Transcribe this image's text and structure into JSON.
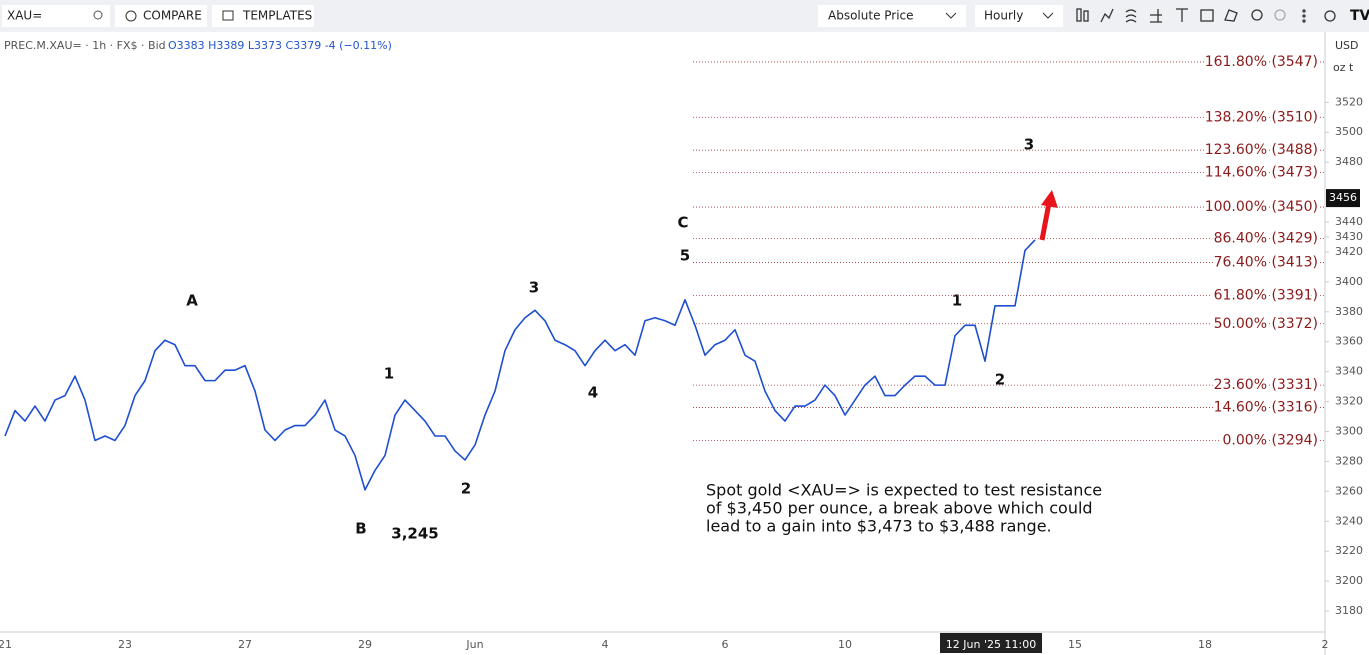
{
  "toolbar": {
    "symbol": "XAU=",
    "compare": "COMPARE",
    "templates": "TEMPLATES",
    "price_mode": "Absolute Price",
    "interval": "Hourly"
  },
  "legend": {
    "instrument": "PREC.M.XAU= · 1h · FX$ · Bid",
    "ohlc": "O3383  H3389  L3373  C3379  -4 (−0.11%)"
  },
  "currency": "USD",
  "unit": "oz t",
  "chart_data": {
    "type": "line",
    "color": "#1f4fd1",
    "categories": [
      "21",
      null,
      null,
      null,
      null,
      null,
      null,
      null,
      null,
      null,
      null,
      null,
      "23",
      null,
      null,
      null,
      null,
      null,
      null,
      null,
      null,
      null,
      null,
      null,
      "27",
      null,
      null,
      null,
      null,
      null,
      null,
      null,
      null,
      null,
      null,
      null,
      "29",
      null,
      null,
      null,
      null,
      null,
      null,
      null,
      null,
      null,
      null,
      "Jun",
      null,
      null,
      null,
      null,
      null,
      null,
      null,
      null,
      null,
      null,
      null,
      null,
      "4",
      null,
      null,
      null,
      null,
      null,
      null,
      null,
      null,
      null,
      null,
      null,
      "6",
      null,
      null,
      null,
      null,
      null,
      null,
      null,
      null,
      null,
      null,
      null,
      "10",
      null,
      null,
      null,
      null,
      null,
      null,
      null,
      null,
      null,
      null,
      null,
      null,
      null,
      null,
      null,
      null,
      null,
      null,
      null,
      null,
      null,
      null,
      "15",
      null,
      null,
      null,
      null,
      null,
      null,
      null,
      null,
      null,
      null,
      null,
      null,
      "18",
      null,
      null,
      null,
      null,
      null,
      null,
      null,
      null,
      null,
      null,
      null,
      "2"
    ],
    "values": [
      3297,
      3314,
      3307,
      3317,
      3307,
      3321,
      3324,
      3337,
      3321,
      3294,
      3297,
      3294,
      3304,
      3324,
      3334,
      3354,
      3361,
      3358,
      3344,
      3344,
      3334,
      3334,
      3341,
      3341,
      3344,
      3327,
      3301,
      3294,
      3301,
      3304,
      3304,
      3311,
      3321,
      3301,
      3297,
      3284,
      3261,
      3274,
      3284,
      3311,
      3321,
      3314,
      3307,
      3297,
      3297,
      3287,
      3281,
      3291,
      3311,
      3327,
      3354,
      3368,
      3376,
      3381,
      3374,
      3361,
      3358,
      3354,
      3344,
      3354,
      3361,
      3354,
      3358,
      3351,
      3374,
      3376,
      3374,
      3371,
      3388,
      3371,
      3351,
      3358,
      3361,
      3368,
      3351,
      3347,
      3327,
      3314,
      3307,
      3317,
      3317,
      3321,
      3331,
      3324,
      3311,
      3321,
      3331,
      3337,
      3324,
      3324,
      3331,
      3337,
      3337,
      3331,
      3331,
      3364,
      3371,
      3371,
      3347,
      3384,
      3384,
      3384,
      3421,
      3428,
      null,
      null,
      null,
      null,
      null,
      null,
      null,
      null,
      null,
      null,
      null,
      null,
      null,
      null,
      null,
      null,
      null,
      null,
      null,
      null,
      null,
      null,
      null,
      null,
      null,
      null,
      null,
      null,
      null
    ],
    "crosshair_label": "12 Jun '25  11:00",
    "ylim": [
      3166,
      3567
    ],
    "yticks": [
      3180,
      3200,
      3220,
      3240,
      3260,
      3280,
      3300,
      3320,
      3340,
      3360,
      3380,
      3400,
      3420,
      3430,
      3440,
      3480,
      3500,
      3520
    ],
    "last_price": 3456,
    "levels": [
      {
        "label": "161.80% (3547)",
        "price": 3547
      },
      {
        "label": "138.20% (3510)",
        "price": 3510
      },
      {
        "label": "123.60% (3488)",
        "price": 3488
      },
      {
        "label": "114.60% (3473)",
        "price": 3473
      },
      {
        "label": "100.00% (3450)",
        "price": 3450
      },
      {
        "label": "86.40% (3429)",
        "price": 3429
      },
      {
        "label": "76.40% (3413)",
        "price": 3413
      },
      {
        "label": "61.80% (3391)",
        "price": 3391
      },
      {
        "label": "50.00% (3372)",
        "price": 3372
      },
      {
        "label": "23.60% (3331)",
        "price": 3331
      },
      {
        "label": "14.60% (3316)",
        "price": 3316
      },
      {
        "label": "0.00% (3294)",
        "price": 3294
      }
    ],
    "annotations": [
      "A",
      "1",
      "B",
      "3,245",
      "2",
      "3",
      "4",
      "C",
      "5",
      "1",
      "2",
      "3"
    ],
    "text_box": [
      "Spot gold <XAU=> is expected to test resistance",
      "of $3,450 per ounce, a break above which could",
      "lead to a gain into $3,473 to $3,488 range."
    ]
  }
}
